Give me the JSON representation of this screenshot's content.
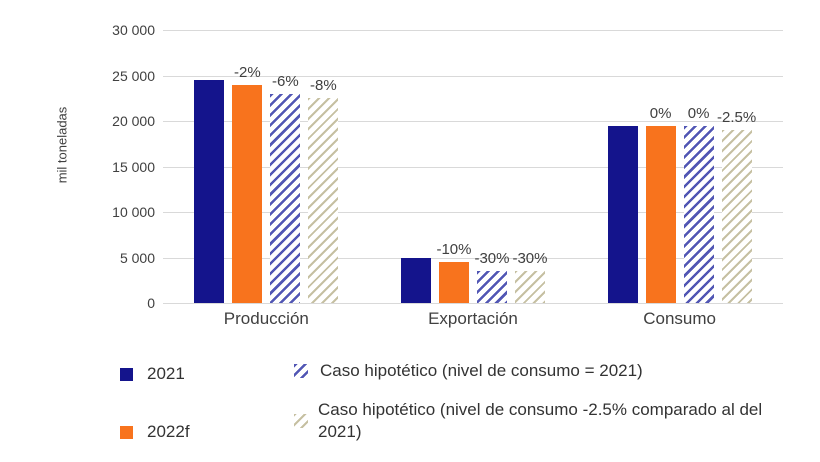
{
  "chart_data": {
    "type": "bar",
    "title": "",
    "xlabel": "",
    "ylabel": "mil toneladas",
    "ylim": [
      0,
      30000
    ],
    "grid": true,
    "legend_position": "bottom",
    "yticks": [
      0,
      5000,
      10000,
      15000,
      20000,
      25000,
      30000
    ],
    "ytick_labels": [
      "0",
      "5 000",
      "10 000",
      "15 000",
      "20 000",
      "25 000",
      "30 000"
    ],
    "categories": [
      "Producción",
      "Exportación",
      "Consumo"
    ],
    "series": [
      {
        "name": "2021",
        "style": "solid-navy",
        "values": [
          24500,
          5000,
          19500
        ],
        "labels": [
          "",
          "",
          ""
        ]
      },
      {
        "name": "2022f",
        "style": "solid-orange",
        "values": [
          24000,
          4500,
          19500
        ],
        "labels": [
          "-2%",
          "-10%",
          "0%"
        ]
      },
      {
        "name": "Caso hipotético (nivel de consumo = 2021)",
        "style": "hatch-blue",
        "values": [
          23000,
          3500,
          19500
        ],
        "labels": [
          "-6%",
          "-30%",
          "0%"
        ]
      },
      {
        "name": "Caso hipotético (nivel de consumo -2.5% comparado al del 2021)",
        "style": "hatch-tan",
        "values": [
          22500,
          3500,
          19000
        ],
        "labels": [
          "-8%",
          "-30%",
          "-2.5%"
        ]
      }
    ]
  },
  "colors": {
    "navy": "#14148C",
    "orange": "#F8731D",
    "hatch_blue": "#5156B4",
    "hatch_tan": "#C6C0A2",
    "gridline": "#D9D9D9",
    "text": "#404040"
  },
  "legend": {
    "items": [
      {
        "label": "2021",
        "swatch": "solid-navy"
      },
      {
        "label": "2022f",
        "swatch": "solid-orange"
      },
      {
        "label": "Caso hipotético (nivel de consumo = 2021)",
        "swatch": "hatch-blue"
      },
      {
        "label": "Caso hipotético (nivel de consumo -2.5% comparado al del 2021)",
        "swatch": "hatch-tan"
      }
    ]
  }
}
